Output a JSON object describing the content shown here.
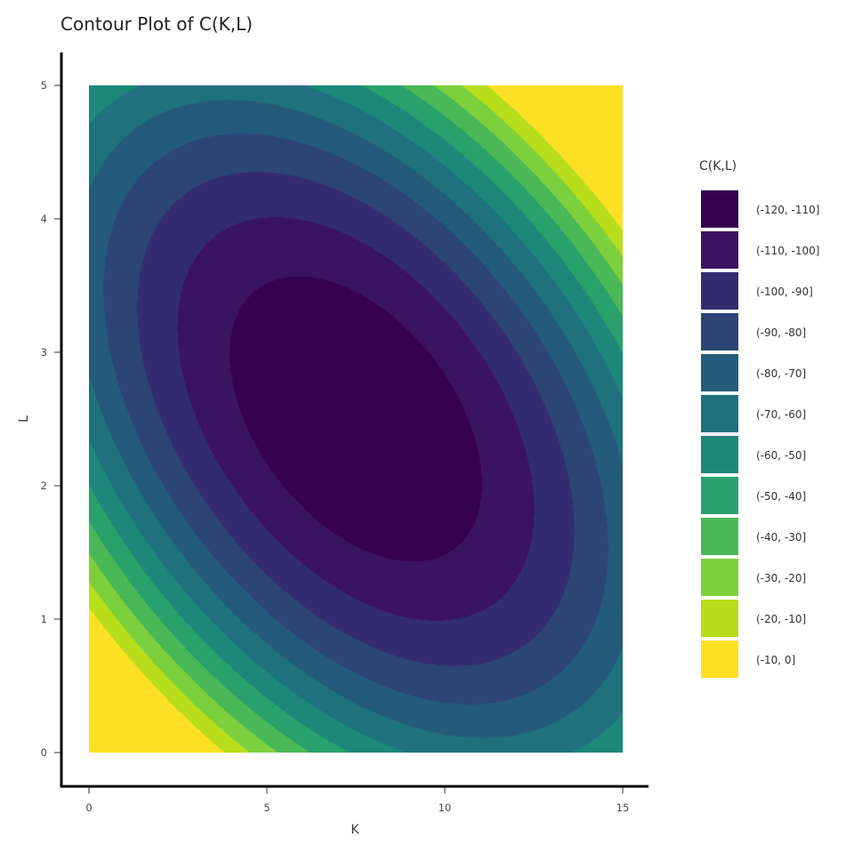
{
  "chart_data": {
    "type": "heatmap",
    "subtype": "filled-contour",
    "title": "Contour Plot of C(K,L)",
    "xlabel": "K",
    "ylabel": "L",
    "xlim": [
      0,
      15
    ],
    "ylim": [
      0,
      5
    ],
    "x_ticks": [
      0,
      5,
      10,
      15
    ],
    "y_ticks": [
      0,
      1,
      2,
      3,
      4,
      5
    ],
    "grid": false,
    "legend_position": "right",
    "legend_title": "C(K,L)",
    "levels": [
      {
        "label": "(-120, -110]",
        "lo": -120,
        "hi": -110,
        "color": "#35014e"
      },
      {
        "label": "(-110, -100]",
        "lo": -110,
        "hi": -100,
        "color": "#3b1460"
      },
      {
        "label": "(-100, -90]",
        "lo": -100,
        "hi": -90,
        "color": "#332d6f"
      },
      {
        "label": "(-90, -80]",
        "lo": -90,
        "hi": -80,
        "color": "#2c4575"
      },
      {
        "label": "(-80, -70]",
        "lo": -80,
        "hi": -70,
        "color": "#245b7a"
      },
      {
        "label": "(-70, -60]",
        "lo": -70,
        "hi": -60,
        "color": "#1f717d"
      },
      {
        "label": "(-60, -50]",
        "lo": -60,
        "hi": -50,
        "color": "#1d877a"
      },
      {
        "label": "(-50, -40]",
        "lo": -50,
        "hi": -40,
        "color": "#2aa06c"
      },
      {
        "label": "(-40, -30]",
        "lo": -40,
        "hi": -30,
        "color": "#4ab857"
      },
      {
        "label": "(-30, -20]",
        "lo": -30,
        "hi": -20,
        "color": "#7cd03d"
      },
      {
        "label": "(-20, -10]",
        "lo": -20,
        "hi": -10,
        "color": "#b8dd1b"
      },
      {
        "label": "(-10, 0]",
        "lo": -10,
        "hi": 0,
        "color": "#fde024"
      }
    ],
    "surface": {
      "form": "quadratic",
      "minimum_value": -120,
      "minimum_at": {
        "K": 7.5,
        "L": 2.5
      },
      "coef_KK": 1.0,
      "coef_LL": 11.0,
      "coef_KL": 3.0
    }
  }
}
